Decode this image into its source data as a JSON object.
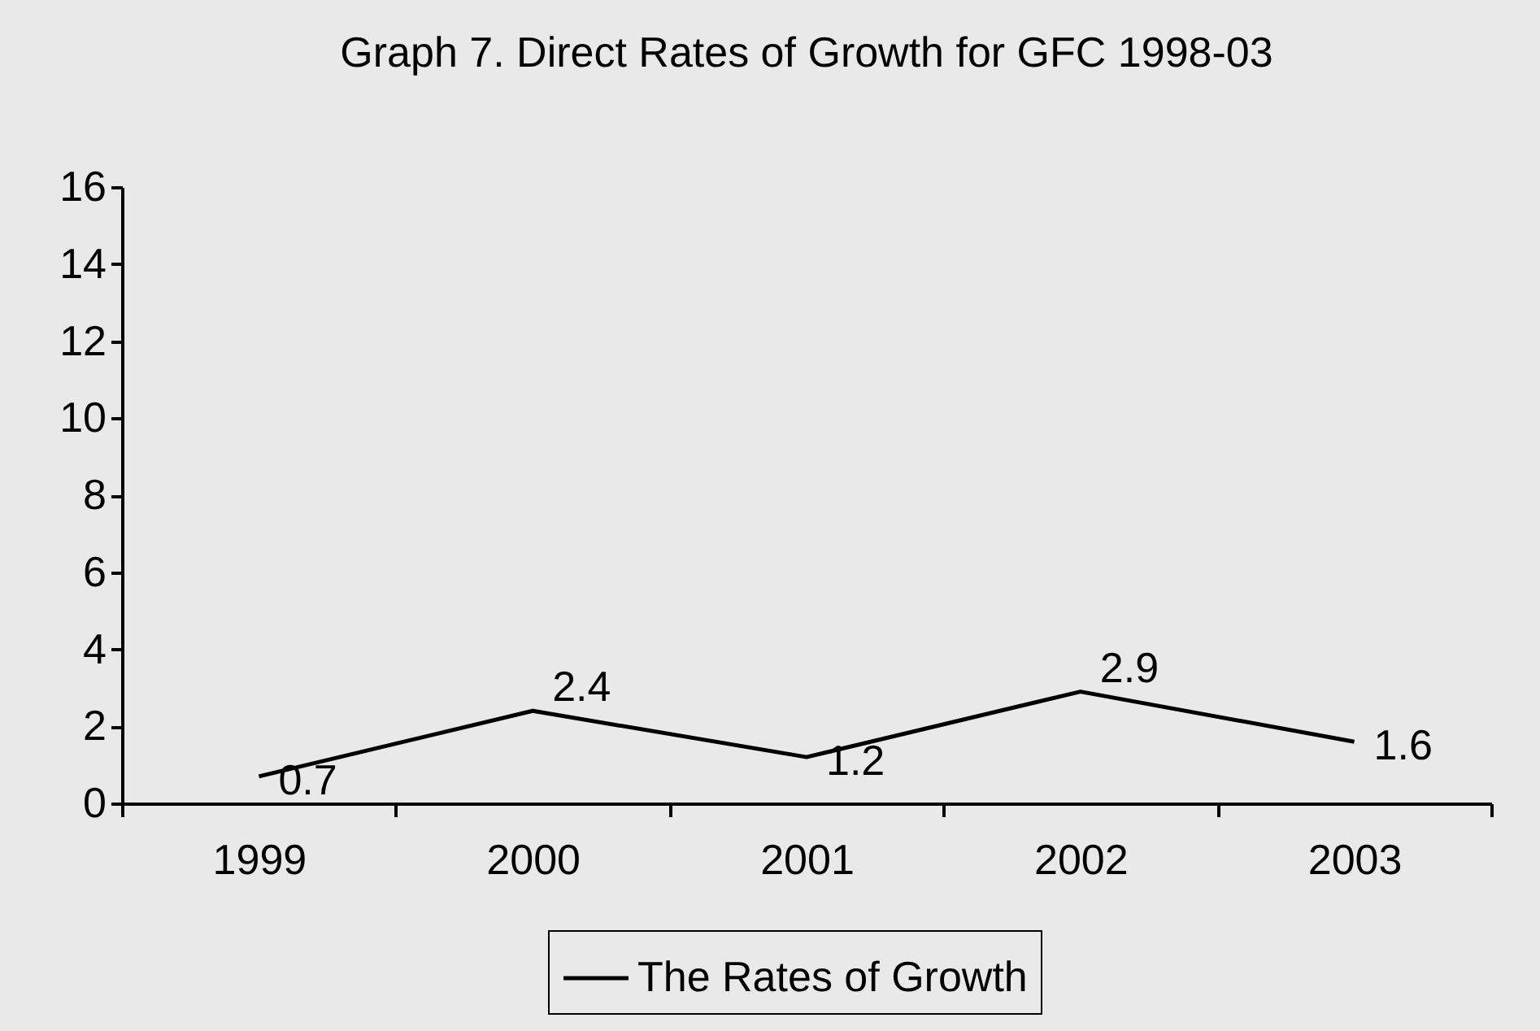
{
  "chart_data": {
    "type": "line",
    "title": "Graph 7. Direct Rates of Growth for GFC 1998-03",
    "categories": [
      "1999",
      "2000",
      "2001",
      "2002",
      "2003"
    ],
    "series": [
      {
        "name": "The Rates of Growth",
        "color": "#000000",
        "values": [
          0.7,
          2.4,
          1.2,
          2.9,
          1.6
        ]
      }
    ],
    "ylim": [
      0,
      16
    ],
    "yticks": [
      0,
      2,
      4,
      6,
      8,
      10,
      12,
      14,
      16
    ],
    "legend": "bottom",
    "data_labels": true,
    "line_style": "solid"
  }
}
